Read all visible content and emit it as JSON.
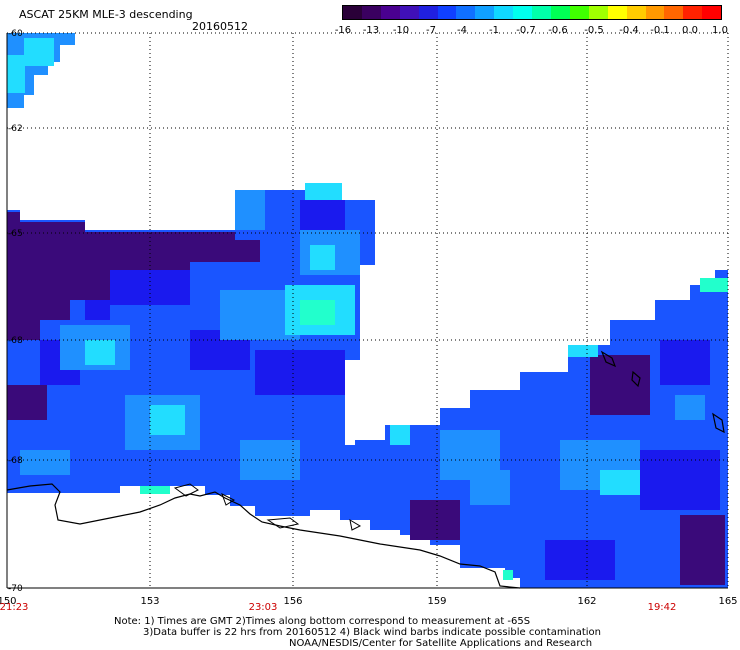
{
  "title": "ASCAT 25KM MLE-3 descending",
  "date": "20160512",
  "colorbar": {
    "labels": [
      "-16",
      "-13",
      "-10",
      "-7",
      "-4",
      "-1",
      "-0.7",
      "-0.6",
      "-0.5",
      "-0.4",
      "-0.1",
      "0.0",
      "1.0"
    ],
    "colors": [
      "#2a0038",
      "#3a0060",
      "#4a0090",
      "#4010b8",
      "#2020e0",
      "#1040ff",
      "#1070ff",
      "#10a0ff",
      "#10d8ff",
      "#00ffee",
      "#00ffaa",
      "#00ff55",
      "#40ff00",
      "#a0ff00",
      "#ffff00",
      "#ffcc00",
      "#ff9900",
      "#ff6600",
      "#ff2200",
      "#ff0000"
    ]
  },
  "axes": {
    "lon_labels": [
      "150",
      "153",
      "156",
      "159",
      "162",
      "165"
    ],
    "lat_labels": [
      "-60",
      "-62",
      "-65",
      "-68",
      "-68",
      "-70"
    ],
    "time_labels": [
      "21:23",
      "23:03",
      "19:42"
    ],
    "time_color": "#cc0000"
  },
  "colors": {
    "ice_deep": "#3a0a7a",
    "blue_dark": "#1a1aee",
    "blue": "#1a55ff",
    "blue_light": "#1f90ff",
    "cyan": "#22ddff",
    "cyan_green": "#22ffcc"
  },
  "notes": [
    "Note: 1) Times are GMT 2)Times along bottom correspond to measurement at -65S",
    "3)Data buffer is 22 hrs from 20160512 4) Black wind barbs indicate possible contamination",
    "NOAA/NESDIS/Center for Satellite Applications and Research"
  ]
}
